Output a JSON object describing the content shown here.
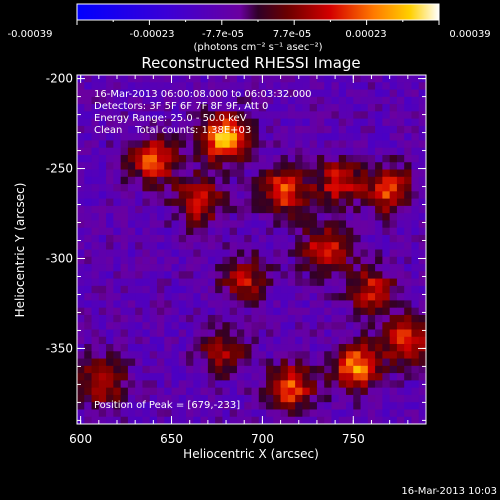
{
  "colorbar": {
    "tick_labels": [
      "-0.00039",
      "-0.00023",
      "-7.7e-05",
      "7.7e-05",
      "0.00023",
      "0.00039"
    ],
    "unit_label": "(photons cm⁻² s⁻¹ asec⁻²)",
    "range": [
      -0.00039,
      0.00039
    ]
  },
  "chart_data": {
    "type": "heatmap",
    "title": "Reconstructed RHESSI Image",
    "xlabel": "Heliocentric X (arcsec)",
    "ylabel": "Heliocentric Y (arcsec)",
    "xlim": [
      598,
      790
    ],
    "ylim": [
      -392,
      -198
    ],
    "x_ticks": [
      600,
      650,
      700,
      750
    ],
    "y_ticks": [
      -200,
      -250,
      -300,
      -350
    ],
    "annotations": [
      "16-Mar-2013 06:00:08.000 to 06:03:32.000",
      "Detectors: 3F 5F 6F 7F 8F 9F, Att 0",
      "Energy Range: 25.0 - 50.0 keV",
      "Clean    Total counts: 1.38E+03"
    ],
    "peak_label": "Position of Peak = [679,-233]",
    "peak": [
      679,
      -233
    ],
    "sources": [
      {
        "x": 679,
        "y": -233,
        "intensity": 0.00039
      },
      {
        "x": 640,
        "y": -245,
        "intensity": 0.0003
      },
      {
        "x": 665,
        "y": -268,
        "intensity": 0.00026
      },
      {
        "x": 712,
        "y": -262,
        "intensity": 0.0003
      },
      {
        "x": 742,
        "y": -258,
        "intensity": 0.00024
      },
      {
        "x": 770,
        "y": -262,
        "intensity": 0.00028
      },
      {
        "x": 735,
        "y": -295,
        "intensity": 0.00027
      },
      {
        "x": 690,
        "y": -312,
        "intensity": 0.00022
      },
      {
        "x": 760,
        "y": -318,
        "intensity": 0.00024
      },
      {
        "x": 752,
        "y": -360,
        "intensity": 0.00036
      },
      {
        "x": 715,
        "y": -372,
        "intensity": 0.0003
      },
      {
        "x": 780,
        "y": -345,
        "intensity": 0.00026
      },
      {
        "x": 612,
        "y": -368,
        "intensity": 0.00024
      },
      {
        "x": 678,
        "y": -352,
        "intensity": 0.00018
      }
    ],
    "background_level": -8e-05
  },
  "footer": {
    "timestamp": "16-Mar-2013 10:03"
  }
}
